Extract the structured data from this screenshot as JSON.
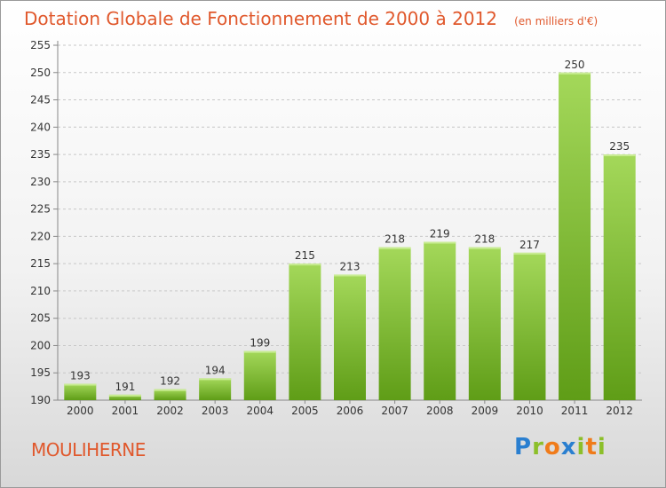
{
  "title": "Dotation Globale de Fonctionnement de 2000 à 2012",
  "unit": "(en milliers d'€)",
  "commune": "MOULIHERNE",
  "logo_text": "Proxiti",
  "colors": {
    "title": "#e0582c",
    "bar_light": "#a4d85a",
    "bar_dark": "#5f9d17",
    "grid": "#c8c8c8"
  },
  "chart_data": {
    "type": "bar",
    "categories": [
      "2000",
      "2001",
      "2002",
      "2003",
      "2004",
      "2005",
      "2006",
      "2007",
      "2008",
      "2009",
      "2010",
      "2011",
      "2012"
    ],
    "values": [
      193,
      191,
      192,
      194,
      199,
      215,
      213,
      218,
      219,
      218,
      217,
      250,
      235
    ],
    "ylim": [
      190,
      255
    ],
    "yticks": [
      190,
      195,
      200,
      205,
      210,
      215,
      220,
      225,
      230,
      235,
      240,
      245,
      250,
      255
    ],
    "grid": "horizontal dashed",
    "xlabel": "",
    "ylabel": ""
  }
}
